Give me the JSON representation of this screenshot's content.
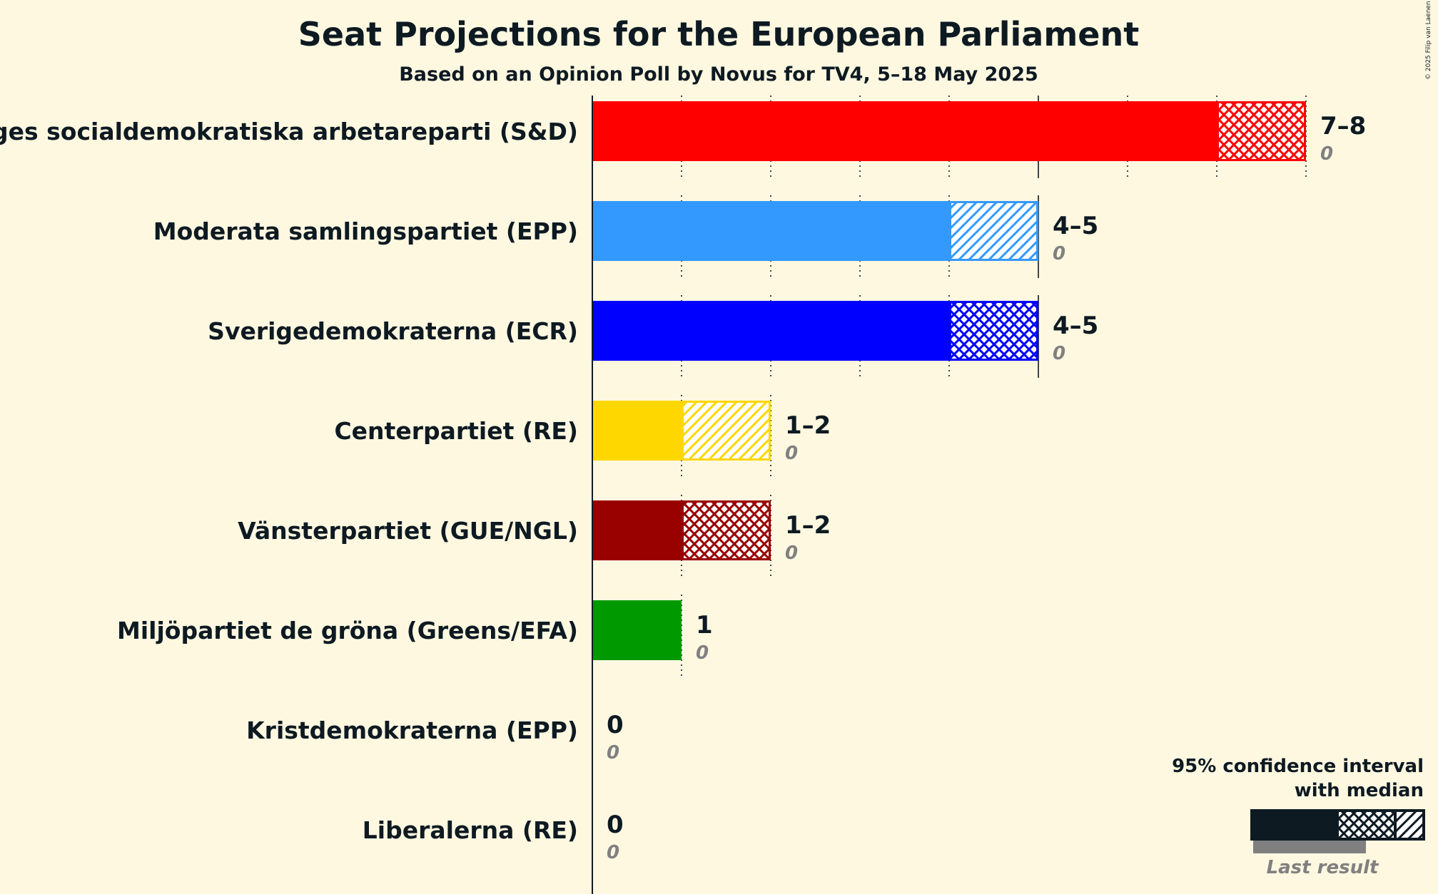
{
  "chart_data": {
    "type": "bar",
    "title": "Seat Projections for the European Parliament",
    "subtitle": "Based on an Opinion Poll by Novus for TV4, 5–18 May 2025",
    "copyright": "© 2025 Filip van Laenen",
    "xlim": [
      0,
      8
    ],
    "categories": [
      "Sveriges socialdemokratiska arbetareparti (S&D)",
      "Moderata samlingspartiet (EPP)",
      "Sverigedemokraterna (ECR)",
      "Centerpartiet (RE)",
      "Vänsterpartiet (GUE/NGL)",
      "Miljöpartiet de gröna (Greens/EFA)",
      "Kristdemokraterna (EPP)",
      "Liberalerna (RE)"
    ],
    "parties": [
      {
        "name": "Sveriges socialdemokratiska arbetareparti (S&D)",
        "color": "#ff0000",
        "ci_low": 7,
        "ci_high": 8,
        "median": 8,
        "hatch": "cross",
        "range_label": "7–8",
        "last_result": 0,
        "last_label": "0"
      },
      {
        "name": "Moderata samlingspartiet (EPP)",
        "color": "#3399ff",
        "ci_low": 4,
        "ci_high": 5,
        "median": 4,
        "hatch": "diagonal",
        "range_label": "4–5",
        "last_result": 0,
        "last_label": "0"
      },
      {
        "name": "Sverigedemokraterna (ECR)",
        "color": "#0000ff",
        "ci_low": 4,
        "ci_high": 5,
        "median": 5,
        "hatch": "cross",
        "range_label": "4–5",
        "last_result": 0,
        "last_label": "0"
      },
      {
        "name": "Centerpartiet (RE)",
        "color": "#ffd700",
        "ci_low": 1,
        "ci_high": 2,
        "median": 1,
        "hatch": "diagonal",
        "range_label": "1–2",
        "last_result": 0,
        "last_label": "0"
      },
      {
        "name": "Vänsterpartiet (GUE/NGL)",
        "color": "#990000",
        "ci_low": 1,
        "ci_high": 2,
        "median": 2,
        "hatch": "cross",
        "range_label": "1–2",
        "last_result": 0,
        "last_label": "0"
      },
      {
        "name": "Miljöpartiet de gröna (Greens/EFA)",
        "color": "#009900",
        "ci_low": 1,
        "ci_high": 1,
        "median": 1,
        "hatch": "none",
        "range_label": "1",
        "last_result": 0,
        "last_label": "0"
      },
      {
        "name": "Kristdemokraterna (EPP)",
        "color": "#000099",
        "ci_low": 0,
        "ci_high": 0,
        "median": 0,
        "hatch": "none",
        "range_label": "0",
        "last_result": 0,
        "last_label": "0"
      },
      {
        "name": "Liberalerna (RE)",
        "color": "#006ab3",
        "ci_low": 0,
        "ci_high": 0,
        "median": 0,
        "hatch": "none",
        "range_label": "0",
        "last_result": 0,
        "last_label": "0"
      }
    ],
    "legend": {
      "title_line1": "95% confidence interval",
      "title_line2": "with median",
      "last_result": "Last result",
      "placement": "bottom-right"
    }
  }
}
